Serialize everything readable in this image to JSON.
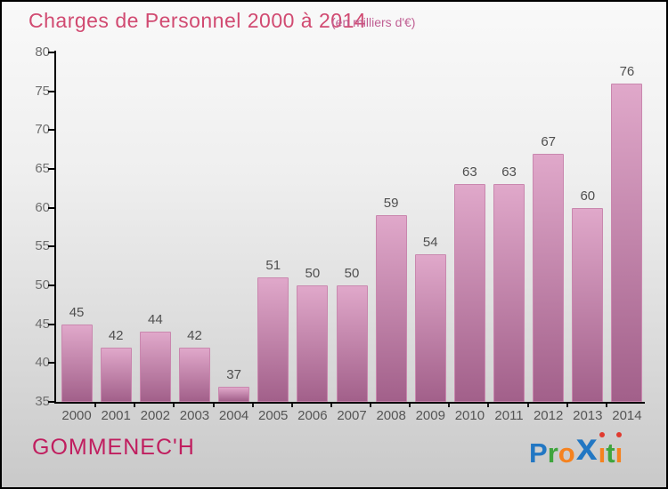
{
  "title": {
    "text": "Charges de Personnel 2000 à 2014",
    "color": "#d14a71",
    "subtitle": "(en milliers d'€)",
    "subtitle_color": "#c05f93"
  },
  "chart_data": {
    "type": "bar",
    "title": "Charges de Personnel 2000 à 2014",
    "subtitle": "(en milliers d'€)",
    "categories": [
      "2000",
      "2001",
      "2002",
      "2003",
      "2004",
      "2005",
      "2006",
      "2007",
      "2008",
      "2009",
      "2010",
      "2011",
      "2012",
      "2013",
      "2014"
    ],
    "values": [
      45,
      42,
      44,
      42,
      37,
      51,
      50,
      50,
      59,
      54,
      63,
      63,
      67,
      60,
      76
    ],
    "xlabel": "",
    "ylabel": "",
    "ylim": [
      35,
      80
    ],
    "yticks": [
      35,
      40,
      45,
      50,
      55,
      60,
      65,
      70,
      75,
      80
    ],
    "grid": false,
    "legend": false,
    "bar_color_top": "#e0a8ca",
    "bar_color_bottom": "#a2608a",
    "bar_border_color": "#c987ae",
    "value_label_color": "#4f4f4f",
    "ytick_label_color": "#6e6e6e",
    "xtick_label_color": "#555555"
  },
  "footer": {
    "commune": "GOMMENEC'H",
    "commune_color": "#c01e5f",
    "logo": {
      "name": "Proxiti",
      "letters": [
        {
          "char": "P",
          "color": "#2277c3"
        },
        {
          "char": "r",
          "color": "#3fa53d"
        },
        {
          "char": "o",
          "color": "#f5821f"
        },
        {
          "char": "x",
          "color": "#2277c3",
          "big": true
        },
        {
          "char": "i",
          "color": "#f5821f",
          "dot": "#e03a2f"
        },
        {
          "char": "t",
          "color": "#3fa53d"
        },
        {
          "char": "i",
          "color": "#f5821f",
          "dot": "#e03a2f"
        }
      ]
    }
  }
}
